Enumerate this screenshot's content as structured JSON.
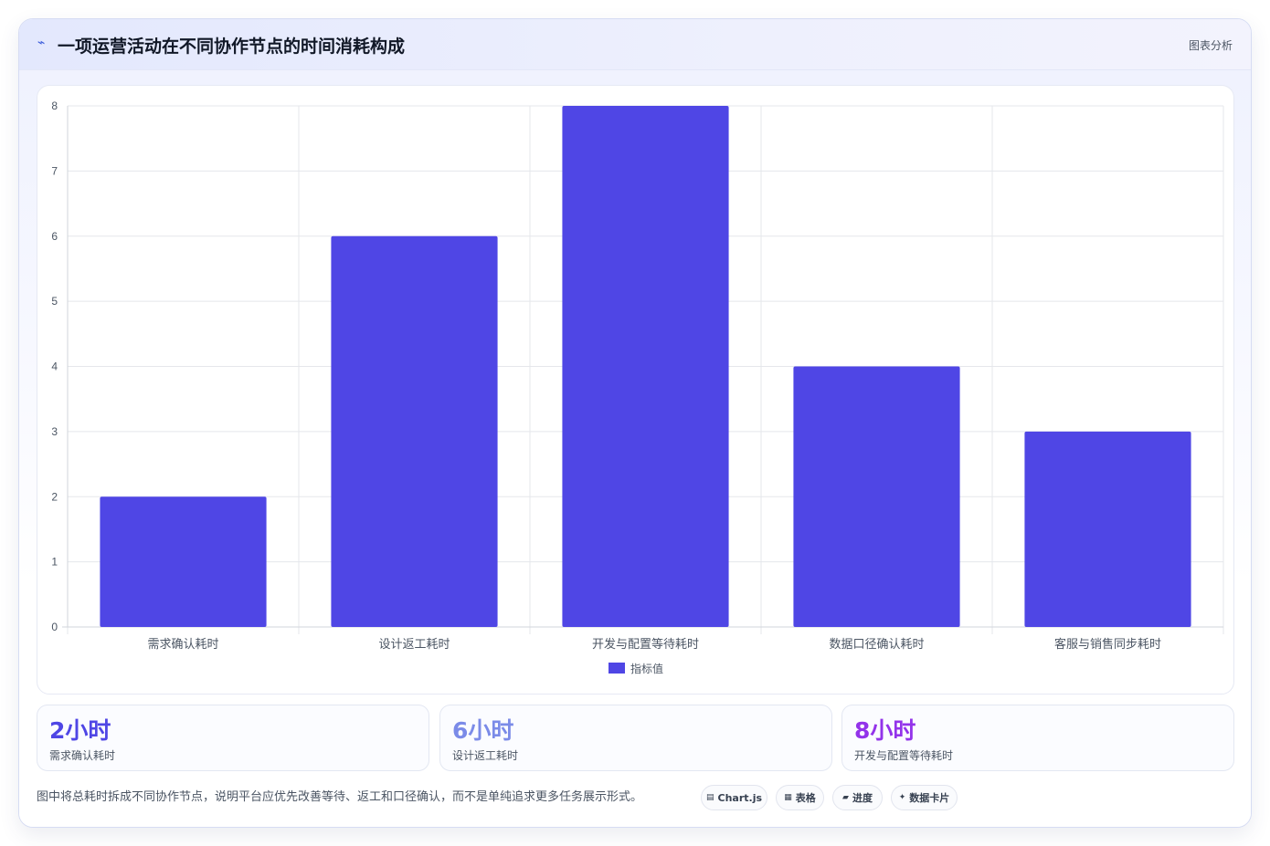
{
  "header": {
    "icon": "pulse-icon",
    "title": "一项运营活动在不同协作节点的时间消耗构成",
    "tag": "图表分析"
  },
  "chart_data": {
    "type": "bar",
    "categories": [
      "需求确认耗时",
      "设计返工耗时",
      "开发与配置等待耗时",
      "数据口径确认耗时",
      "客服与销售同步耗时"
    ],
    "series": [
      {
        "name": "指标值",
        "values": [
          2,
          6,
          8,
          4,
          3
        ],
        "color": "#4f46e5"
      }
    ],
    "ylim": [
      0,
      8
    ],
    "yticks": [
      "0",
      "1",
      "2",
      "3",
      "4",
      "5",
      "6",
      "7",
      "8"
    ],
    "grid": true,
    "legend": "bottom"
  },
  "stats": [
    {
      "value": "2小时",
      "label": "需求确认耗时",
      "color": "#4f46e5"
    },
    {
      "value": "6小时",
      "label": "设计返工耗时",
      "color": "#7b8be8"
    },
    {
      "value": "8小时",
      "label": "开发与配置等待耗时",
      "color": "#9333ea"
    }
  ],
  "note": "图中将总耗时拆成不同协作节点，说明平台应优先改善等待、返工和口径确认，而不是单纯追求更多任务展示形式。",
  "chips": [
    {
      "icon": "▤",
      "icon_name": "chart-icon",
      "label": "Chart.js"
    },
    {
      "icon": "▦",
      "icon_name": "table-icon",
      "label": "表格"
    },
    {
      "icon": "▰",
      "icon_name": "progress-icon",
      "label": "进度"
    },
    {
      "icon": "✦",
      "icon_name": "sparkle-icon",
      "label": "数据卡片"
    }
  ]
}
